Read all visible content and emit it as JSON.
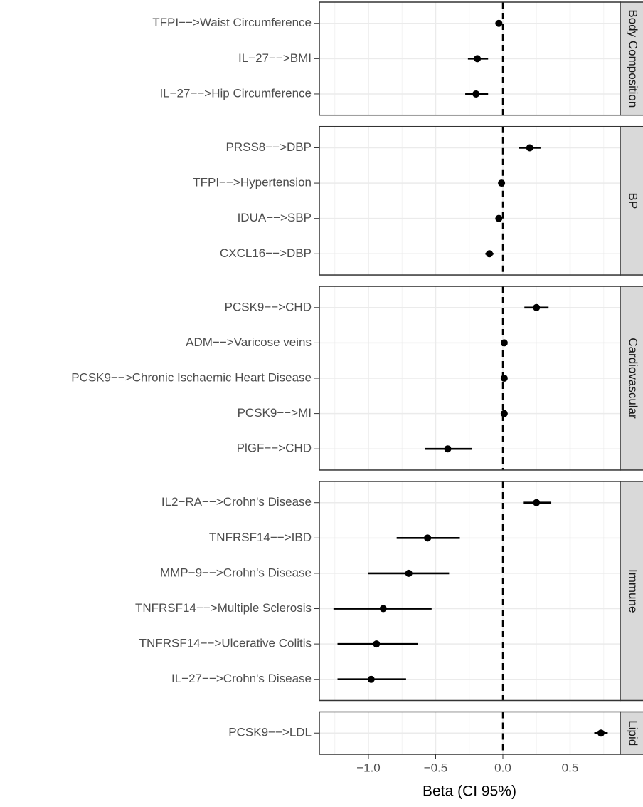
{
  "chart_data": {
    "type": "forest",
    "xlabel": "Beta (CI 95%)",
    "xlim": [
      -1.365,
      0.873
    ],
    "xticks": [
      {
        "value": -1.0,
        "label": "−1.0"
      },
      {
        "value": -0.5,
        "label": "−0.5"
      },
      {
        "value": 0.0,
        "label": "0.0"
      },
      {
        "value": 0.5,
        "label": "0.5"
      }
    ],
    "ref_line": 0,
    "grid": true,
    "color": "#000000",
    "facets": [
      {
        "name": "Body Composition",
        "categories": [
          "TFPI−−>Waist Circumference",
          "IL−27−−>BMI",
          "IL−27−−>Hip Circumference"
        ],
        "values": [
          -0.03,
          -0.19,
          -0.2
        ],
        "lower": [
          -0.04,
          -0.26,
          -0.28
        ],
        "upper": [
          -0.02,
          -0.11,
          -0.11
        ]
      },
      {
        "name": "BP",
        "categories": [
          "PRSS8−−>DBP",
          "TFPI−−>Hypertension",
          "IDUA−−>SBP",
          "CXCL16−−>DBP"
        ],
        "values": [
          0.2,
          -0.01,
          -0.03,
          -0.1
        ],
        "lower": [
          0.12,
          -0.02,
          -0.04,
          -0.13
        ],
        "upper": [
          0.28,
          0.0,
          -0.02,
          -0.07
        ]
      },
      {
        "name": "Cardiovascular",
        "categories": [
          "PCSK9−−>CHD",
          "ADM−−>Varicose veins",
          "PCSK9−−>Chronic Ischaemic Heart Disease",
          "PCSK9−−>MI",
          "PlGF−−>CHD"
        ],
        "values": [
          0.25,
          0.01,
          0.01,
          0.01,
          -0.41
        ],
        "lower": [
          0.16,
          0.0,
          0.0,
          0.0,
          -0.58
        ],
        "upper": [
          0.34,
          0.02,
          0.02,
          0.02,
          -0.23
        ]
      },
      {
        "name": "Immune",
        "categories": [
          "IL2−RA−−>Crohn's Disease",
          "TNFRSF14−−>IBD",
          "MMP−9−−>Crohn's Disease",
          "TNFRSF14−−>Multiple Sclerosis",
          "TNFRSF14−−>Ulcerative Colitis",
          "IL−27−−>Crohn's Disease"
        ],
        "values": [
          0.25,
          -0.56,
          -0.7,
          -0.89,
          -0.94,
          -0.98
        ],
        "lower": [
          0.15,
          -0.79,
          -1.0,
          -1.26,
          -1.23,
          -1.23
        ],
        "upper": [
          0.36,
          -0.32,
          -0.4,
          -0.53,
          -0.63,
          -0.72
        ]
      },
      {
        "name": "Lipid",
        "categories": [
          "PCSK9−−>LDL"
        ],
        "values": [
          0.73
        ],
        "lower": [
          0.68
        ],
        "upper": [
          0.78
        ]
      }
    ]
  }
}
